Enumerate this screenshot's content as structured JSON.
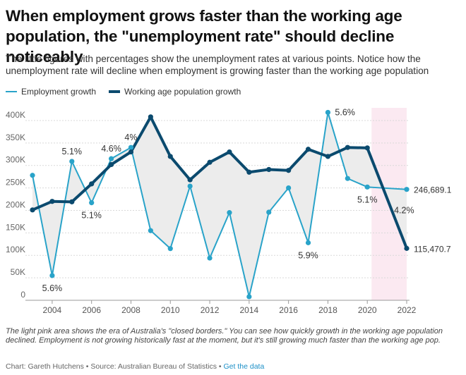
{
  "title": "When employment grows faster than the working age population, the \"unemployment rate\" should decline noticeably",
  "subtitle": "The little figures with percentages show the unemployment rates at various points. Notice how the unemployment rate will decline when employment is growing faster than the working age population",
  "legend": {
    "employment": "Employment growth",
    "population": "Working age population growth"
  },
  "notes": "The light pink area shows the era of Australia's \"closed borders.\" You can see how quickly growth in the working age population declined. Employment is not growing historically fast at the moment, but it's still growing much faster than the working age pop.",
  "source": {
    "text": "Chart: Gareth Hutchens • Source: Australian Bureau of Statistics • ",
    "link": "Get the data"
  },
  "colors": {
    "employment": "#29a3c9",
    "population": "#0b4a6e",
    "shade": "#fbe9f1",
    "area": "#ececec"
  },
  "chart_data": {
    "type": "line",
    "x": [
      2003,
      2004,
      2005,
      2006,
      2007,
      2008,
      2009,
      2010,
      2011,
      2012,
      2013,
      2014,
      2015,
      2016,
      2017,
      2018,
      2019,
      2020,
      2021,
      2022
    ],
    "series": [
      {
        "name": "Employment growth",
        "values": [
          278000,
          55000,
          309000,
          217000,
          315000,
          340000,
          155000,
          115000,
          254000,
          94000,
          195000,
          8000,
          196000,
          250000,
          128000,
          418000,
          271000,
          252000,
          null,
          246689.1
        ]
      },
      {
        "name": "Working age population growth",
        "values": [
          201000,
          220000,
          219000,
          259000,
          302000,
          330000,
          408000,
          320000,
          268000,
          307000,
          330000,
          285000,
          291000,
          289000,
          336000,
          320000,
          340000,
          339000,
          null,
          115470.7
        ]
      }
    ],
    "end_labels": [
      "246,689.1",
      "115,470.7"
    ],
    "annotations": [
      {
        "text": "5.6%",
        "x": 2004,
        "y": 55000,
        "pos": "below"
      },
      {
        "text": "5.1%",
        "x": 2005,
        "y": 309000,
        "pos": "above"
      },
      {
        "text": "5.1%",
        "x": 2006,
        "y": 217000,
        "pos": "below"
      },
      {
        "text": "4.6%",
        "x": 2007,
        "y": 315000,
        "pos": "above"
      },
      {
        "text": "4%",
        "x": 2008,
        "y": 340000,
        "pos": "above"
      },
      {
        "text": "5.9%",
        "x": 2017,
        "y": 128000,
        "pos": "below"
      },
      {
        "text": "5.6%",
        "x": 2018,
        "y": 418000,
        "pos": "right"
      },
      {
        "text": "5.1%",
        "x": 2020,
        "y": 252000,
        "pos": "below"
      },
      {
        "text": "4.2%",
        "x": 2021,
        "y": 200000,
        "pos": "right"
      }
    ],
    "shaded_region": [
      2020,
      2022
    ],
    "xticks": [
      2004,
      2006,
      2008,
      2010,
      2012,
      2014,
      2016,
      2018,
      2020,
      2022
    ],
    "yticks": [
      "0",
      "50K",
      "100K",
      "150K",
      "200K",
      "250K",
      "300K",
      "350K",
      "400K"
    ],
    "ylim": [
      0,
      425000
    ],
    "xlim": [
      2003,
      2022
    ]
  }
}
